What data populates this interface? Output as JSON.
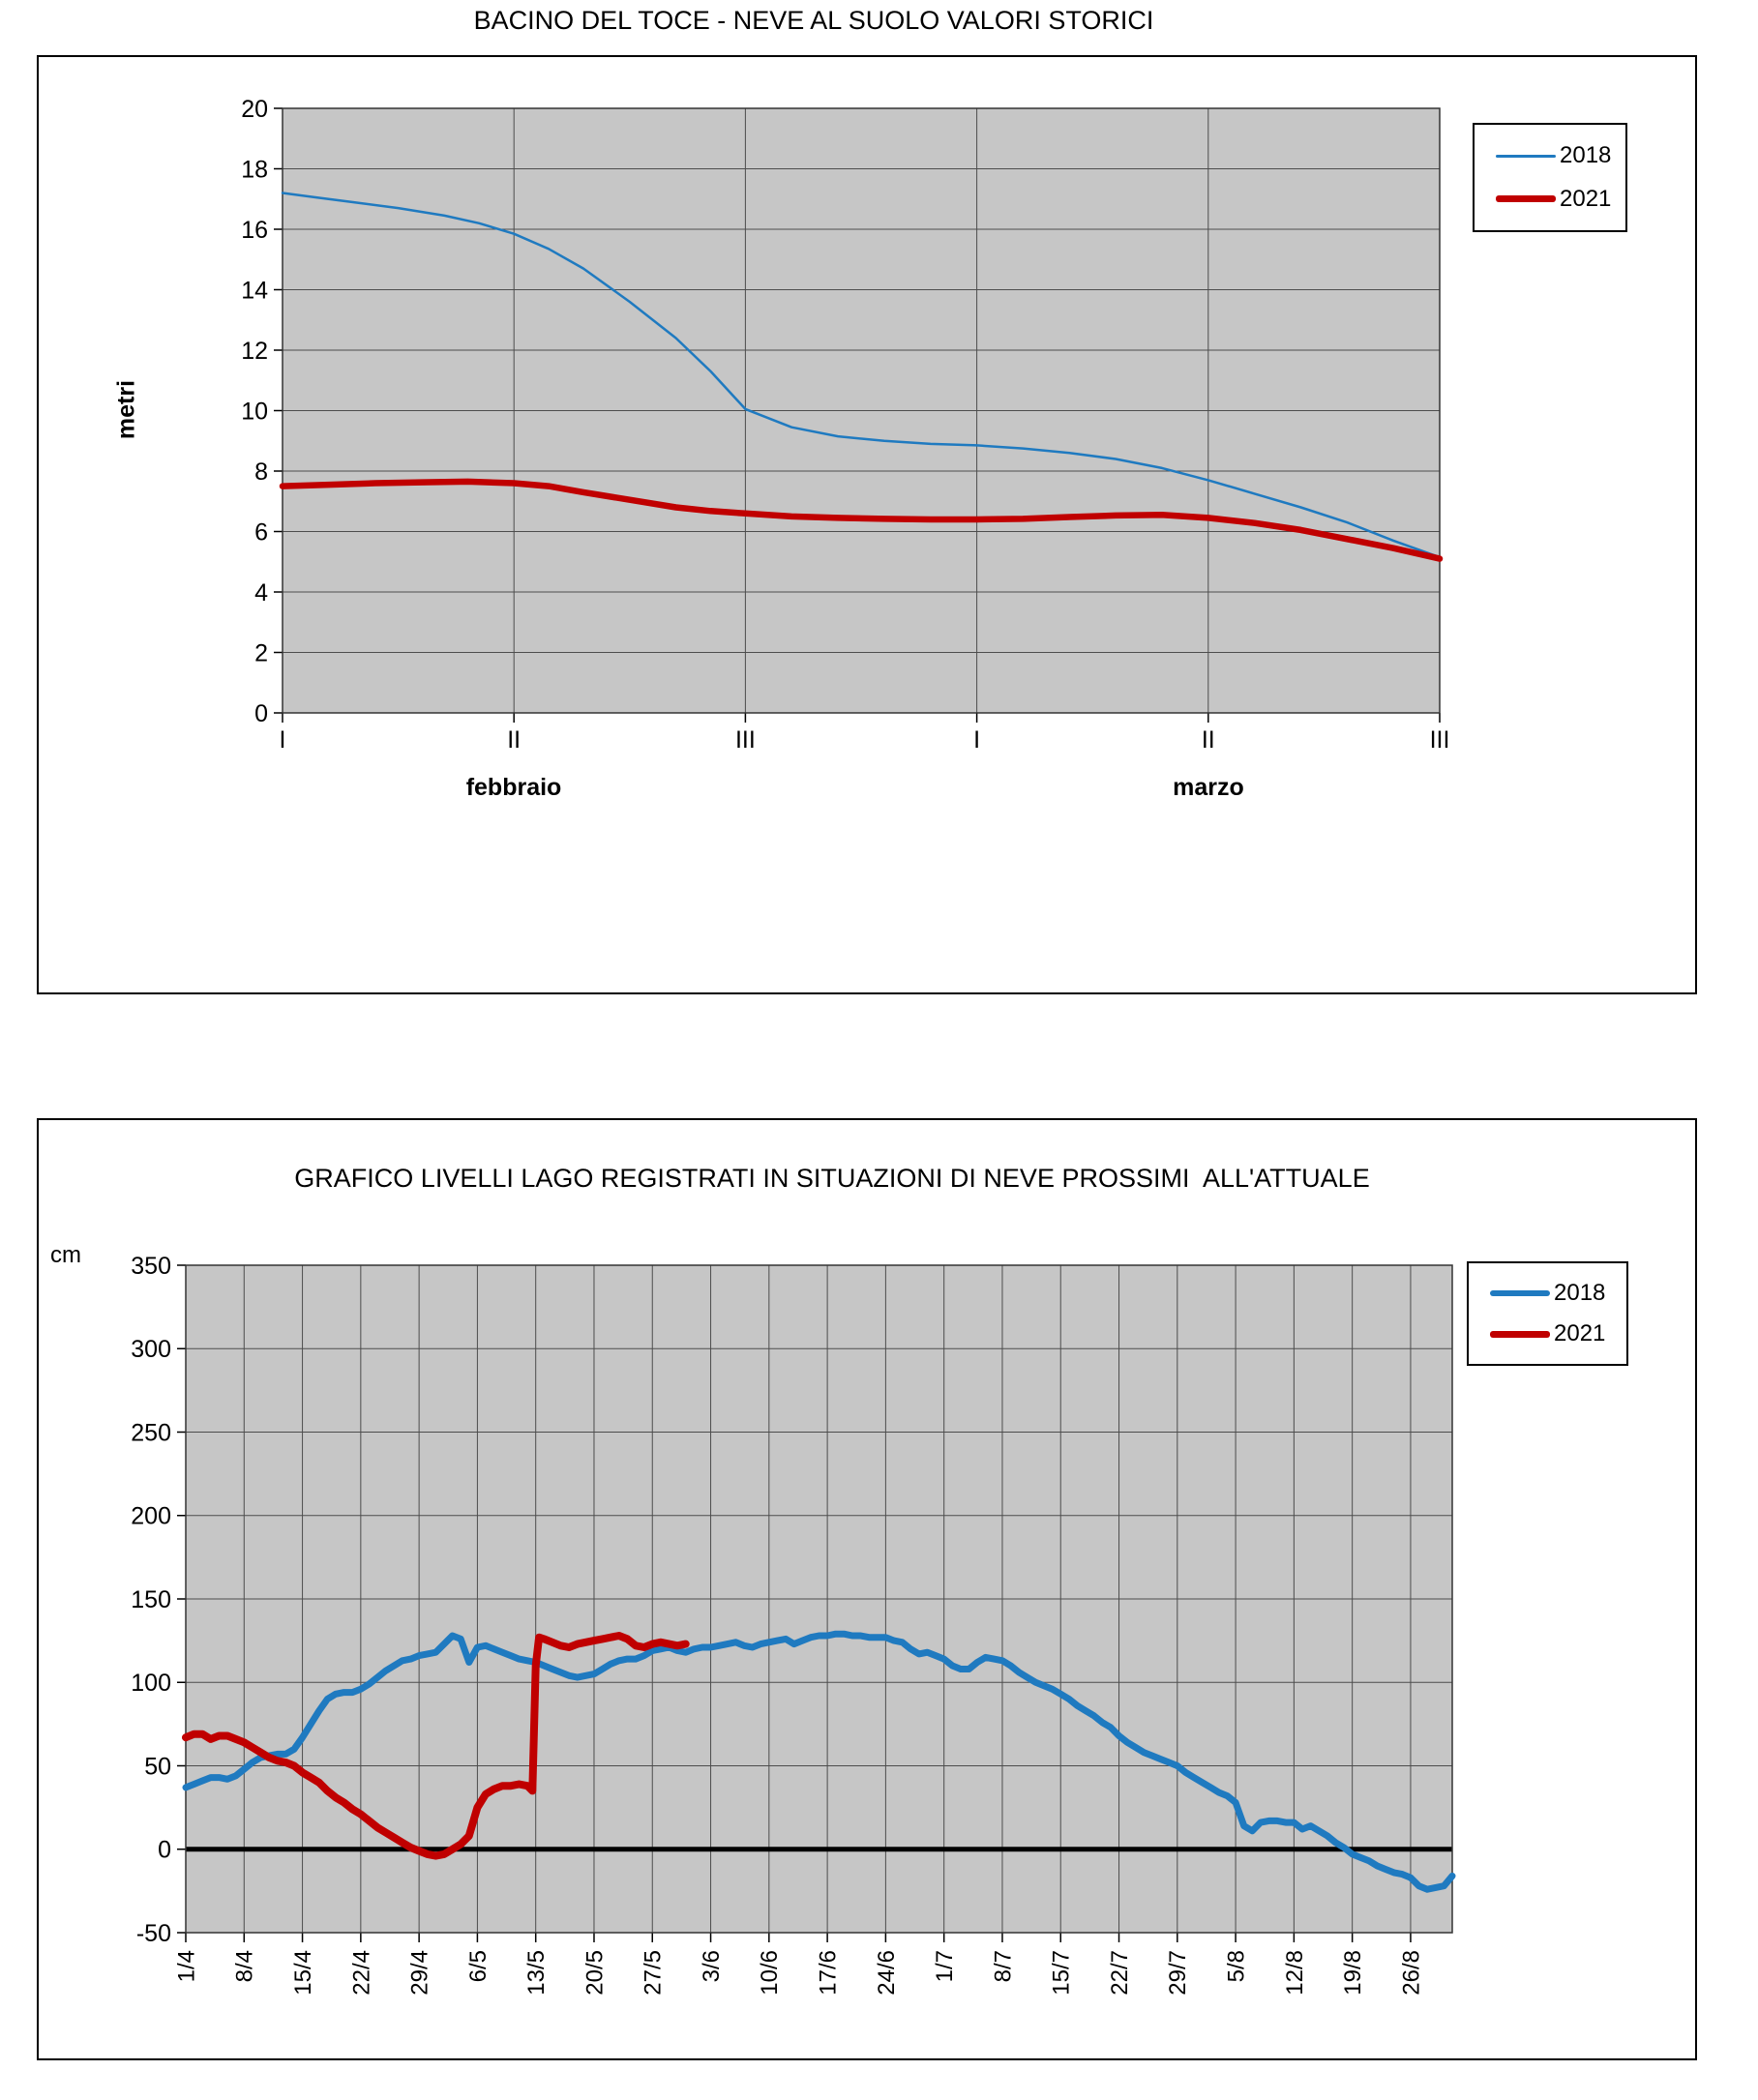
{
  "chart_data": [
    {
      "type": "line",
      "title": "BACINO DEL TOCE - NEVE AL SUOLO VALORI STORICI",
      "ylabel": "metri",
      "ylim": [
        0,
        20
      ],
      "yticks": [
        20,
        18,
        16,
        14,
        12,
        10,
        8,
        6,
        4,
        2,
        0
      ],
      "xlim": [
        0,
        5
      ],
      "xtick_step": 1,
      "xticks": [
        "I",
        "II",
        "III",
        "I",
        "II",
        "III"
      ],
      "x_month_labels": [
        "febbraio",
        "marzo"
      ],
      "grid": true,
      "zero_line": false,
      "plot_bg": "#C6C6C6",
      "legend_position": "top-right-outside",
      "series": [
        {
          "name": "2018",
          "color": "#1F7AC0",
          "width": 2.5,
          "points": [
            [
              0,
              17.2
            ],
            [
              0.15,
              17.05
            ],
            [
              0.3,
              16.9
            ],
            [
              0.5,
              16.7
            ],
            [
              0.7,
              16.45
            ],
            [
              0.85,
              16.2
            ],
            [
              1,
              15.85
            ],
            [
              1.15,
              15.35
            ],
            [
              1.3,
              14.7
            ],
            [
              1.5,
              13.6
            ],
            [
              1.7,
              12.4
            ],
            [
              1.85,
              11.3
            ],
            [
              2,
              10.05
            ],
            [
              2.2,
              9.45
            ],
            [
              2.4,
              9.15
            ],
            [
              2.6,
              9
            ],
            [
              2.8,
              8.9
            ],
            [
              3,
              8.85
            ],
            [
              3.2,
              8.75
            ],
            [
              3.4,
              8.6
            ],
            [
              3.6,
              8.4
            ],
            [
              3.8,
              8.1
            ],
            [
              4,
              7.7
            ],
            [
              4.2,
              7.25
            ],
            [
              4.4,
              6.8
            ],
            [
              4.6,
              6.3
            ],
            [
              4.8,
              5.7
            ],
            [
              5,
              5.15
            ]
          ]
        },
        {
          "name": "2021",
          "color": "#C00000",
          "width": 6.5,
          "points": [
            [
              0,
              7.5
            ],
            [
              0.2,
              7.55
            ],
            [
              0.4,
              7.6
            ],
            [
              0.6,
              7.63
            ],
            [
              0.8,
              7.65
            ],
            [
              1,
              7.6
            ],
            [
              1.15,
              7.5
            ],
            [
              1.3,
              7.3
            ],
            [
              1.5,
              7.05
            ],
            [
              1.7,
              6.8
            ],
            [
              1.85,
              6.68
            ],
            [
              2,
              6.6
            ],
            [
              2.2,
              6.5
            ],
            [
              2.4,
              6.45
            ],
            [
              2.6,
              6.42
            ],
            [
              2.8,
              6.4
            ],
            [
              3,
              6.4
            ],
            [
              3.2,
              6.42
            ],
            [
              3.4,
              6.48
            ],
            [
              3.6,
              6.53
            ],
            [
              3.8,
              6.55
            ],
            [
              4,
              6.45
            ],
            [
              4.2,
              6.28
            ],
            [
              4.4,
              6.05
            ],
            [
              4.6,
              5.75
            ],
            [
              4.8,
              5.45
            ],
            [
              5,
              5.1
            ]
          ]
        }
      ]
    },
    {
      "type": "line",
      "title": "GRAFICO LIVELLI LAGO REGISTRATI IN SITUAZIONI DI NEVE PROSSIMI  ALL'ATTUALE",
      "ylabel": "cm",
      "ylim": [
        -50,
        350
      ],
      "yticks": [
        350,
        300,
        250,
        200,
        150,
        100,
        50,
        0,
        -50
      ],
      "xlim": [
        0,
        152
      ],
      "xtick_step": 7,
      "xticks": [
        "1/4",
        "8/4",
        "15/4",
        "22/4",
        "29/4",
        "6/5",
        "13/5",
        "20/5",
        "27/5",
        "3/6",
        "10/6",
        "17/6",
        "24/6",
        "1/7",
        "8/7",
        "15/7",
        "22/7",
        "29/7",
        "5/8",
        "12/8",
        "19/8",
        "26/8"
      ],
      "x_month_labels": [],
      "grid": true,
      "zero_line": true,
      "plot_bg": "#C6C6C6",
      "legend_position": "right-outside",
      "series": [
        {
          "name": "2018",
          "color": "#1F7AC0",
          "width": 7,
          "points": [
            [
              0,
              37
            ],
            [
              1,
              39
            ],
            [
              2,
              41
            ],
            [
              3,
              43
            ],
            [
              4,
              43
            ],
            [
              5,
              42
            ],
            [
              6,
              44
            ],
            [
              7,
              48
            ],
            [
              8,
              52
            ],
            [
              9,
              55
            ],
            [
              10,
              56
            ],
            [
              11,
              57
            ],
            [
              12,
              57
            ],
            [
              13,
              60
            ],
            [
              14,
              67
            ],
            [
              15,
              75
            ],
            [
              16,
              83
            ],
            [
              17,
              90
            ],
            [
              18,
              93
            ],
            [
              19,
              94
            ],
            [
              20,
              94
            ],
            [
              21,
              96
            ],
            [
              22,
              99
            ],
            [
              23,
              103
            ],
            [
              24,
              107
            ],
            [
              25,
              110
            ],
            [
              26,
              113
            ],
            [
              27,
              114
            ],
            [
              28,
              116
            ],
            [
              29,
              117
            ],
            [
              30,
              118
            ],
            [
              31,
              123
            ],
            [
              32,
              128
            ],
            [
              33,
              126
            ],
            [
              34,
              112
            ],
            [
              35,
              121
            ],
            [
              36,
              122
            ],
            [
              37,
              120
            ],
            [
              38,
              118
            ],
            [
              39,
              116
            ],
            [
              40,
              114
            ],
            [
              41,
              113
            ],
            [
              42,
              112
            ],
            [
              43,
              110
            ],
            [
              44,
              108
            ],
            [
              45,
              106
            ],
            [
              46,
              104
            ],
            [
              47,
              103
            ],
            [
              48,
              104
            ],
            [
              49,
              105
            ],
            [
              50,
              108
            ],
            [
              51,
              111
            ],
            [
              52,
              113
            ],
            [
              53,
              114
            ],
            [
              54,
              114
            ],
            [
              55,
              116
            ],
            [
              56,
              119
            ],
            [
              57,
              120
            ],
            [
              58,
              121
            ],
            [
              59,
              119
            ],
            [
              60,
              118
            ],
            [
              61,
              120
            ],
            [
              62,
              121
            ],
            [
              63,
              121
            ],
            [
              64,
              122
            ],
            [
              65,
              123
            ],
            [
              66,
              124
            ],
            [
              67,
              122
            ],
            [
              68,
              121
            ],
            [
              69,
              123
            ],
            [
              70,
              124
            ],
            [
              71,
              125
            ],
            [
              72,
              126
            ],
            [
              73,
              123
            ],
            [
              74,
              125
            ],
            [
              75,
              127
            ],
            [
              76,
              128
            ],
            [
              77,
              128
            ],
            [
              78,
              129
            ],
            [
              79,
              129
            ],
            [
              80,
              128
            ],
            [
              81,
              128
            ],
            [
              82,
              127
            ],
            [
              83,
              127
            ],
            [
              84,
              127
            ],
            [
              85,
              125
            ],
            [
              86,
              124
            ],
            [
              87,
              120
            ],
            [
              88,
              117
            ],
            [
              89,
              118
            ],
            [
              90,
              116
            ],
            [
              91,
              114
            ],
            [
              92,
              110
            ],
            [
              93,
              108
            ],
            [
              94,
              108
            ],
            [
              95,
              112
            ],
            [
              96,
              115
            ],
            [
              97,
              114
            ],
            [
              98,
              113
            ],
            [
              99,
              110
            ],
            [
              100,
              106
            ],
            [
              101,
              103
            ],
            [
              102,
              100
            ],
            [
              103,
              98
            ],
            [
              104,
              96
            ],
            [
              105,
              93
            ],
            [
              106,
              90
            ],
            [
              107,
              86
            ],
            [
              108,
              83
            ],
            [
              109,
              80
            ],
            [
              110,
              76
            ],
            [
              111,
              73
            ],
            [
              112,
              68
            ],
            [
              113,
              64
            ],
            [
              114,
              61
            ],
            [
              115,
              58
            ],
            [
              116,
              56
            ],
            [
              117,
              54
            ],
            [
              118,
              52
            ],
            [
              119,
              50
            ],
            [
              120,
              46
            ],
            [
              121,
              43
            ],
            [
              122,
              40
            ],
            [
              123,
              37
            ],
            [
              124,
              34
            ],
            [
              125,
              32
            ],
            [
              126,
              28
            ],
            [
              127,
              14
            ],
            [
              128,
              11
            ],
            [
              129,
              16
            ],
            [
              130,
              17
            ],
            [
              131,
              17
            ],
            [
              132,
              16
            ],
            [
              133,
              16
            ],
            [
              134,
              12
            ],
            [
              135,
              14
            ],
            [
              136,
              11
            ],
            [
              137,
              8
            ],
            [
              138,
              4
            ],
            [
              139,
              1
            ],
            [
              140,
              -3
            ],
            [
              141,
              -5
            ],
            [
              142,
              -7
            ],
            [
              143,
              -10
            ],
            [
              144,
              -12
            ],
            [
              145,
              -14
            ],
            [
              146,
              -15
            ],
            [
              147,
              -17
            ],
            [
              148,
              -22
            ],
            [
              149,
              -24
            ],
            [
              150,
              -23
            ],
            [
              151,
              -22
            ],
            [
              152,
              -16
            ]
          ]
        },
        {
          "name": "2021",
          "color": "#C00000",
          "width": 8,
          "points": [
            [
              0,
              67
            ],
            [
              1,
              69
            ],
            [
              2,
              69
            ],
            [
              3,
              66
            ],
            [
              4,
              68
            ],
            [
              5,
              68
            ],
            [
              6,
              66
            ],
            [
              7,
              64
            ],
            [
              8,
              61
            ],
            [
              9,
              58
            ],
            [
              10,
              55
            ],
            [
              11,
              53
            ],
            [
              12,
              52
            ],
            [
              13,
              50
            ],
            [
              14,
              46
            ],
            [
              15,
              43
            ],
            [
              16,
              40
            ],
            [
              17,
              35
            ],
            [
              18,
              31
            ],
            [
              19,
              28
            ],
            [
              20,
              24
            ],
            [
              21,
              21
            ],
            [
              22,
              17
            ],
            [
              23,
              13
            ],
            [
              24,
              10
            ],
            [
              25,
              7
            ],
            [
              26,
              4
            ],
            [
              27,
              1
            ],
            [
              28,
              -1
            ],
            [
              29,
              -3
            ],
            [
              30,
              -4
            ],
            [
              31,
              -3
            ],
            [
              32,
              0
            ],
            [
              33,
              3
            ],
            [
              34,
              8
            ],
            [
              35,
              25
            ],
            [
              36,
              33
            ],
            [
              37,
              36
            ],
            [
              38,
              38
            ],
            [
              39,
              38
            ],
            [
              40,
              39
            ],
            [
              41,
              38
            ],
            [
              41.6,
              35
            ],
            [
              42,
              110
            ],
            [
              42.4,
              127
            ],
            [
              43,
              126
            ],
            [
              44,
              124
            ],
            [
              45,
              122
            ],
            [
              46,
              121
            ],
            [
              47,
              123
            ],
            [
              48,
              124
            ],
            [
              49,
              125
            ],
            [
              50,
              126
            ],
            [
              51,
              127
            ],
            [
              52,
              128
            ],
            [
              53,
              126
            ],
            [
              54,
              122
            ],
            [
              55,
              121
            ],
            [
              56,
              123
            ],
            [
              57,
              124
            ],
            [
              58,
              123
            ],
            [
              59,
              122
            ],
            [
              60,
              123
            ]
          ]
        }
      ]
    }
  ]
}
